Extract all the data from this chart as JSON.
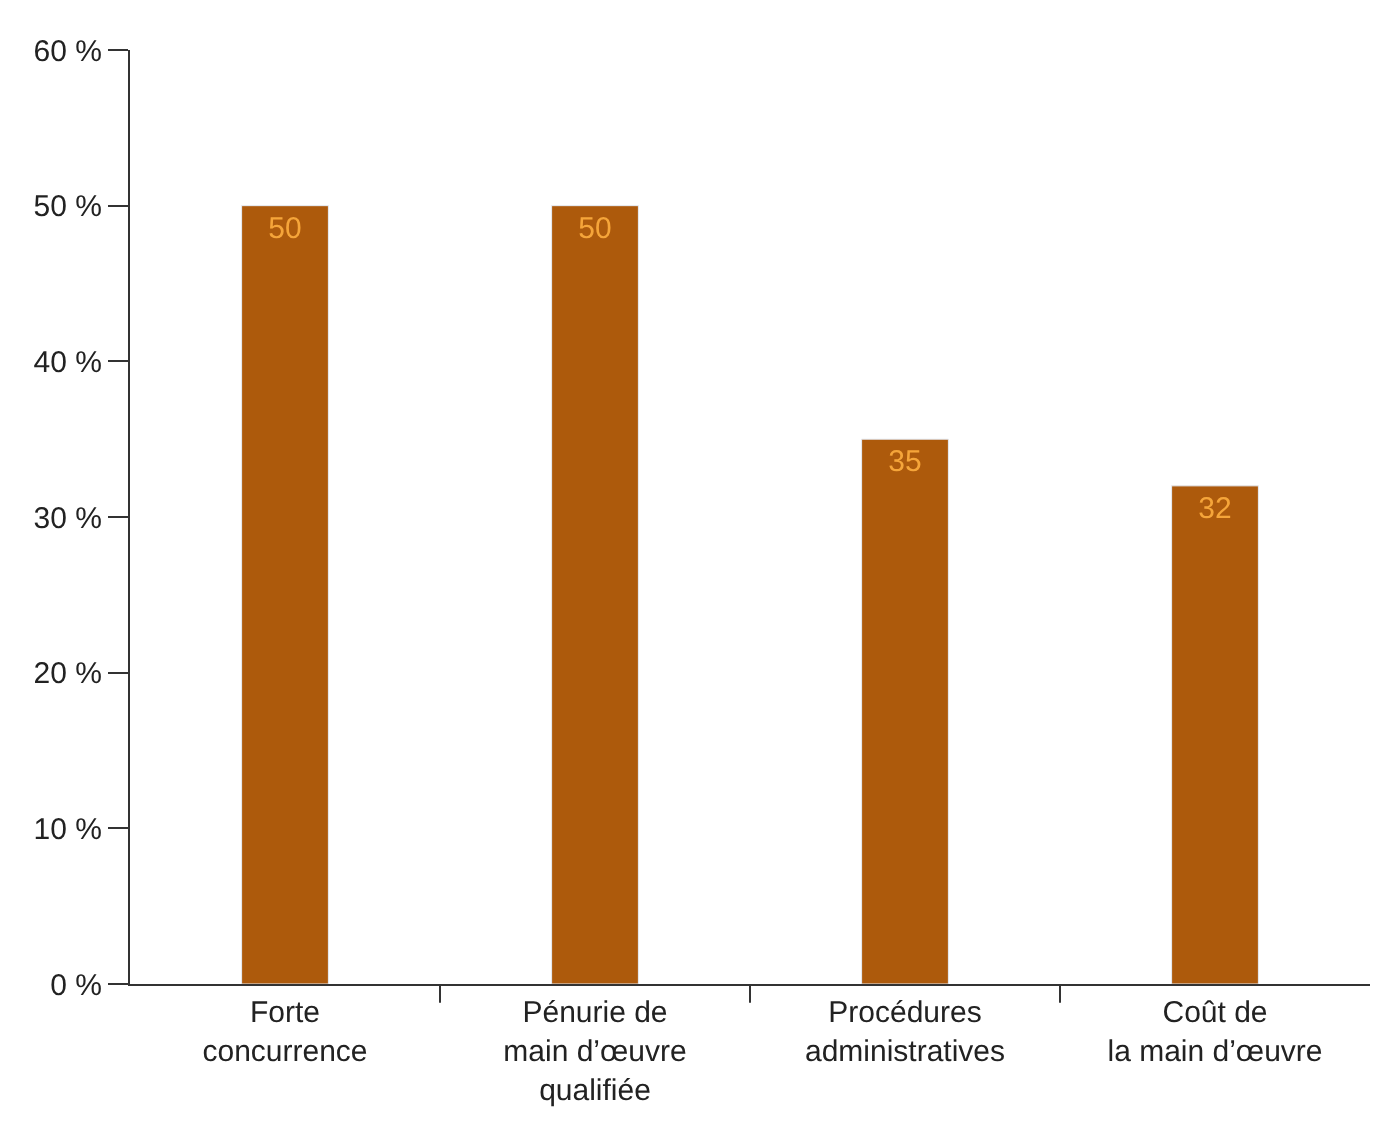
{
  "chart_data": {
    "type": "bar",
    "categories": [
      "Forte\nconcurrence",
      "Pénurie de\nmain d’œuvre\nqualifiée",
      "Procédures\nadministratives",
      "Coût de\nla main d’œuvre"
    ],
    "values": [
      50,
      50,
      35,
      32
    ],
    "color": "#ad5a0c",
    "data_labels": true,
    "ylim": [
      0,
      60
    ],
    "yticks": [
      {
        "value": 0,
        "label": "0 %"
      },
      {
        "value": 10,
        "label": "10 %"
      },
      {
        "value": 20,
        "label": "20 %"
      },
      {
        "value": 30,
        "label": "30 %"
      },
      {
        "value": 40,
        "label": "40 %"
      },
      {
        "value": 50,
        "label": "50 %"
      },
      {
        "value": 60,
        "label": "60 %"
      }
    ],
    "legend": false
  }
}
